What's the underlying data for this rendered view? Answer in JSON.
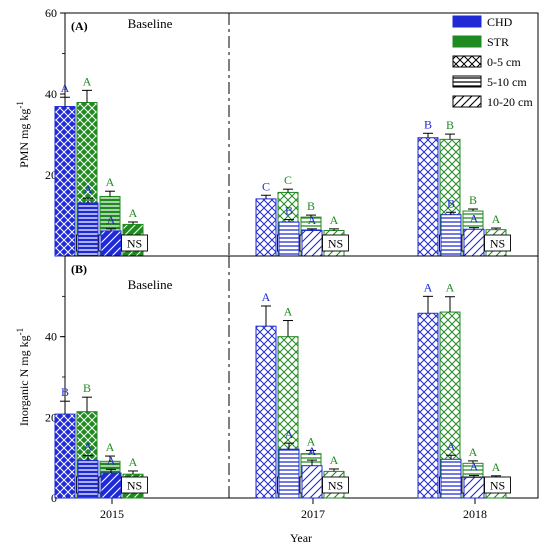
{
  "chart_data": {
    "type": "bar",
    "xlabel": "Year",
    "years": [
      "2015",
      "2017",
      "2018"
    ],
    "depths": [
      "0-5 cm",
      "5-10 cm",
      "10-20 cm"
    ],
    "treatments": [
      "CHD",
      "STR"
    ],
    "colors": {
      "CHD": "#1f2ad6",
      "STR": "#1f8a1f"
    },
    "legend": {
      "placement": "top-right",
      "entries": [
        {
          "label": "CHD",
          "kind": "solid",
          "key": "CHD"
        },
        {
          "label": "STR",
          "kind": "solid",
          "key": "STR"
        },
        {
          "label": "0-5 cm",
          "kind": "cross"
        },
        {
          "label": "5-10 cm",
          "kind": "horizontal"
        },
        {
          "label": "10-20 cm",
          "kind": "diagonal"
        }
      ]
    },
    "ns_label": "NS",
    "panels": [
      {
        "label": "(A)",
        "ylabel": "PMN  mg kg",
        "ylabel_sup": "-1",
        "ylim": [
          0,
          60
        ],
        "yticks": [
          20,
          40,
          60
        ],
        "baseline_label": "Baseline",
        "groups": [
          {
            "year": "2015",
            "solid": true,
            "bars": [
              {
                "depth": "0-5 cm",
                "CHD": {
                  "value": 36.9,
                  "err": 2.3,
                  "letter": "A"
                },
                "STR": {
                  "value": 37.9,
                  "err": 3.0,
                  "letter": "A"
                }
              },
              {
                "depth": "5-10 cm",
                "CHD": {
                  "value": 13.1,
                  "err": 1.2,
                  "letter": "A"
                },
                "STR": {
                  "value": 14.7,
                  "err": 1.3,
                  "letter": "A"
                }
              },
              {
                "depth": "10-20 cm",
                "CHD": {
                  "value": 6.2,
                  "err": 0.5,
                  "letter": "A"
                },
                "STR": {
                  "value": 7.8,
                  "err": 0.6,
                  "letter": "A"
                }
              }
            ]
          },
          {
            "year": "2017",
            "solid": false,
            "bars": [
              {
                "depth": "0-5 cm",
                "CHD": {
                  "value": 14.1,
                  "err": 0.9,
                  "letter": "C"
                },
                "STR": {
                  "value": 15.7,
                  "err": 0.8,
                  "letter": "C"
                }
              },
              {
                "depth": "5-10 cm",
                "CHD": {
                  "value": 8.4,
                  "err": 0.6,
                  "letter": "B"
                },
                "STR": {
                  "value": 9.6,
                  "err": 0.5,
                  "letter": "B"
                }
              },
              {
                "depth": "10-20 cm",
                "CHD": {
                  "value": 6.3,
                  "err": 0.4,
                  "letter": "A"
                },
                "STR": {
                  "value": 6.3,
                  "err": 0.4,
                  "letter": "A"
                }
              }
            ]
          },
          {
            "year": "2018",
            "solid": false,
            "bars": [
              {
                "depth": "0-5 cm",
                "CHD": {
                  "value": 29.2,
                  "err": 1.1,
                  "letter": "B"
                },
                "STR": {
                  "value": 28.8,
                  "err": 1.3,
                  "letter": "B"
                }
              },
              {
                "depth": "5-10 cm",
                "CHD": {
                  "value": 10.2,
                  "err": 0.6,
                  "letter": "B"
                },
                "STR": {
                  "value": 11.1,
                  "err": 0.5,
                  "letter": "B"
                }
              },
              {
                "depth": "10-20 cm",
                "CHD": {
                  "value": 6.6,
                  "err": 0.4,
                  "letter": "A"
                },
                "STR": {
                  "value": 6.5,
                  "err": 0.4,
                  "letter": "A"
                }
              }
            ]
          }
        ]
      },
      {
        "label": "(B)",
        "ylabel": "Inorganic N mg kg",
        "ylabel_sup": "-1",
        "ylim": [
          0,
          60
        ],
        "yticks": [
          0,
          20,
          40
        ],
        "baseline_label": "Baseline",
        "groups": [
          {
            "year": "2015",
            "solid": true,
            "bars": [
              {
                "depth": "0-5 cm",
                "CHD": {
                  "value": 20.8,
                  "err": 3.2,
                  "letter": "B"
                },
                "STR": {
                  "value": 21.4,
                  "err": 3.6,
                  "letter": "B"
                }
              },
              {
                "depth": "5-10 cm",
                "CHD": {
                  "value": 9.3,
                  "err": 1.2,
                  "letter": "A"
                },
                "STR": {
                  "value": 9.1,
                  "err": 1.3,
                  "letter": "A"
                }
              },
              {
                "depth": "10-20 cm",
                "CHD": {
                  "value": 6.2,
                  "err": 0.9,
                  "letter": "A"
                },
                "STR": {
                  "value": 5.9,
                  "err": 0.8,
                  "letter": "A"
                }
              }
            ]
          },
          {
            "year": "2017",
            "solid": false,
            "bars": [
              {
                "depth": "0-5 cm",
                "CHD": {
                  "value": 42.6,
                  "err": 5.0,
                  "letter": "A"
                },
                "STR": {
                  "value": 40.0,
                  "err": 4.0,
                  "letter": "A"
                }
              },
              {
                "depth": "5-10 cm",
                "CHD": {
                  "value": 12.1,
                  "err": 1.5,
                  "letter": "A"
                },
                "STR": {
                  "value": 11.0,
                  "err": 0.8,
                  "letter": "A"
                }
              },
              {
                "depth": "10-20 cm",
                "CHD": {
                  "value": 8.0,
                  "err": 1.4,
                  "letter": "A"
                },
                "STR": {
                  "value": 6.6,
                  "err": 0.6,
                  "letter": "A"
                }
              }
            ]
          },
          {
            "year": "2018",
            "solid": false,
            "bars": [
              {
                "depth": "0-5 cm",
                "CHD": {
                  "value": 45.8,
                  "err": 4.2,
                  "letter": "A"
                },
                "STR": {
                  "value": 46.1,
                  "err": 3.8,
                  "letter": "A"
                }
              },
              {
                "depth": "5-10 cm",
                "CHD": {
                  "value": 9.6,
                  "err": 1.0,
                  "letter": "A"
                },
                "STR": {
                  "value": 8.6,
                  "err": 0.6,
                  "letter": "A"
                }
              },
              {
                "depth": "10-20 cm",
                "CHD": {
                  "value": 5.1,
                  "err": 0.5,
                  "letter": "A"
                },
                "STR": {
                  "value": 5.1,
                  "err": 0.4,
                  "letter": "A"
                }
              }
            ]
          }
        ]
      }
    ]
  }
}
